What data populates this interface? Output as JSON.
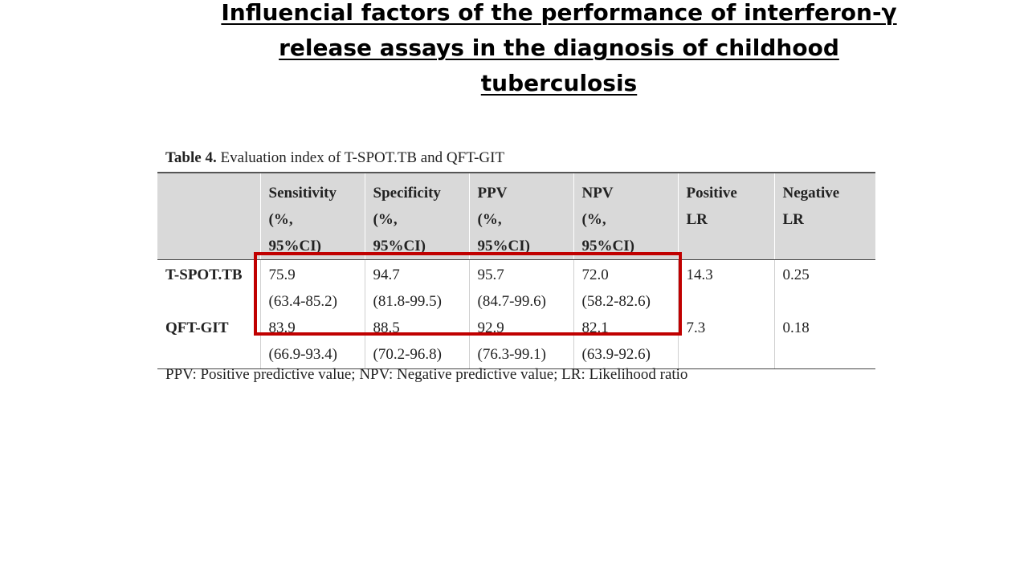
{
  "title": "Influencial factors of the performance of interferon-γ release assays in the diagnosis of childhood tuberculosis",
  "table": {
    "caption_label": "Table 4.",
    "caption_text": " Evaluation index of T-SPOT.TB and QFT-GIT",
    "headers": [
      [
        ""
      ],
      [
        "Sensitivity",
        "(%,",
        "95%CI)"
      ],
      [
        "Specificity",
        "(%,",
        "95%CI)"
      ],
      [
        "PPV",
        "(%,",
        "95%CI)"
      ],
      [
        "NPV",
        "(%,",
        "95%CI)"
      ],
      [
        "Positive",
        "LR"
      ],
      [
        "Negative",
        "LR"
      ]
    ],
    "rows": [
      {
        "label": "T-SPOT.TB",
        "cells": [
          [
            "75.9",
            "(63.4-85.2)"
          ],
          [
            "94.7",
            "(81.8-99.5)"
          ],
          [
            "95.7",
            "(84.7-99.6)"
          ],
          [
            "72.0",
            "(58.2-82.6)"
          ],
          [
            "14.3"
          ],
          [
            "0.25"
          ]
        ]
      },
      {
        "label": "QFT-GIT",
        "cells": [
          [
            "83.9",
            "(66.9-93.4)"
          ],
          [
            "88.5",
            "(70.2-96.8)"
          ],
          [
            "92.9",
            "(76.3-99.1)"
          ],
          [
            "82.1",
            "(63.9-92.6)"
          ],
          [
            "7.3"
          ],
          [
            "0.18"
          ]
        ]
      }
    ],
    "footnote": "PPV: Positive predictive value; NPV: Negative predictive value; LR: Likelihood ratio"
  },
  "colors": {
    "header_background": "#d9d9d9",
    "highlight_border": "#c00000",
    "text": "#222222"
  }
}
